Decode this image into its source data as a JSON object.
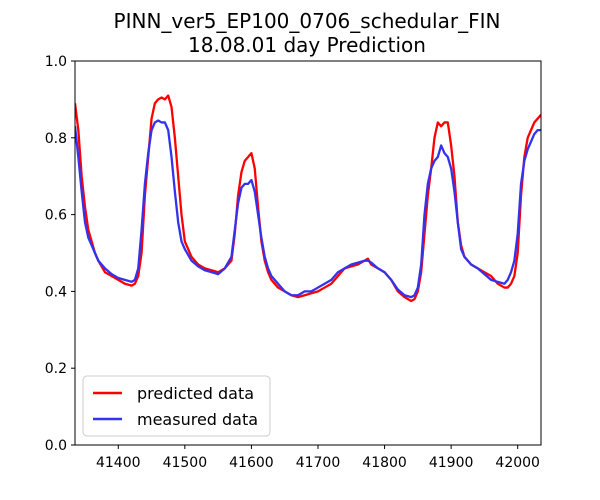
{
  "chart_data": {
    "type": "line",
    "title": [
      "PINN_ver5_EP100_0706_schedular_FIN",
      "18.08.01 day Prediction"
    ],
    "xlabel": "",
    "ylabel": "",
    "xlim": [
      41335,
      42035
    ],
    "ylim": [
      0,
      1.0
    ],
    "xticks": [
      41400,
      41500,
      41600,
      41700,
      41800,
      41900,
      42000
    ],
    "xtick_labels": [
      "41400",
      "41500",
      "41600",
      "41700",
      "41800",
      "41900",
      "42000"
    ],
    "yticks": [
      0.0,
      0.2,
      0.4,
      0.6,
      0.8,
      1.0
    ],
    "ytick_labels": [
      "0.0",
      "0.2",
      "0.4",
      "0.6",
      "0.8",
      "1.0"
    ],
    "grid": false,
    "legend_placement": "lower-left",
    "series": [
      {
        "name": "predicted data",
        "color": "#ff0000",
        "x": [
          41335,
          41340,
          41345,
          41350,
          41355,
          41360,
          41365,
          41370,
          41380,
          41390,
          41400,
          41410,
          41420,
          41425,
          41430,
          41435,
          41440,
          41445,
          41450,
          41455,
          41460,
          41465,
          41470,
          41475,
          41480,
          41485,
          41490,
          41495,
          41500,
          41510,
          41520,
          41530,
          41540,
          41550,
          41560,
          41570,
          41575,
          41580,
          41585,
          41590,
          41595,
          41600,
          41605,
          41610,
          41615,
          41620,
          41625,
          41630,
          41640,
          41650,
          41660,
          41670,
          41680,
          41690,
          41700,
          41710,
          41720,
          41730,
          41740,
          41750,
          41760,
          41770,
          41775,
          41780,
          41790,
          41800,
          41810,
          41820,
          41830,
          41840,
          41845,
          41850,
          41855,
          41860,
          41865,
          41870,
          41875,
          41880,
          41885,
          41890,
          41895,
          41900,
          41905,
          41910,
          41915,
          41920,
          41925,
          41930,
          41940,
          41950,
          41960,
          41970,
          41980,
          41985,
          41990,
          41995,
          42000,
          42005,
          42010,
          42015,
          42020,
          42025,
          42030,
          42035
        ],
        "y": [
          0.89,
          0.82,
          0.7,
          0.62,
          0.56,
          0.53,
          0.5,
          0.48,
          0.45,
          0.44,
          0.43,
          0.42,
          0.415,
          0.42,
          0.44,
          0.5,
          0.65,
          0.75,
          0.85,
          0.89,
          0.9,
          0.905,
          0.9,
          0.91,
          0.88,
          0.8,
          0.7,
          0.6,
          0.53,
          0.49,
          0.47,
          0.46,
          0.455,
          0.45,
          0.46,
          0.48,
          0.55,
          0.65,
          0.71,
          0.74,
          0.75,
          0.76,
          0.72,
          0.62,
          0.53,
          0.48,
          0.45,
          0.43,
          0.41,
          0.4,
          0.39,
          0.385,
          0.39,
          0.395,
          0.4,
          0.41,
          0.42,
          0.44,
          0.46,
          0.465,
          0.47,
          0.48,
          0.485,
          0.47,
          0.46,
          0.45,
          0.43,
          0.4,
          0.385,
          0.375,
          0.38,
          0.4,
          0.45,
          0.55,
          0.65,
          0.72,
          0.8,
          0.84,
          0.83,
          0.84,
          0.84,
          0.78,
          0.7,
          0.58,
          0.52,
          0.49,
          0.48,
          0.47,
          0.46,
          0.45,
          0.44,
          0.42,
          0.41,
          0.41,
          0.42,
          0.44,
          0.5,
          0.65,
          0.75,
          0.8,
          0.82,
          0.84,
          0.85,
          0.86
        ]
      },
      {
        "name": "measured data",
        "color": "#3333ee",
        "x": [
          41335,
          41340,
          41345,
          41350,
          41355,
          41360,
          41365,
          41370,
          41380,
          41390,
          41400,
          41410,
          41420,
          41425,
          41430,
          41435,
          41440,
          41445,
          41450,
          41455,
          41460,
          41465,
          41470,
          41475,
          41480,
          41485,
          41490,
          41495,
          41500,
          41510,
          41520,
          41530,
          41540,
          41550,
          41560,
          41570,
          41575,
          41580,
          41585,
          41590,
          41595,
          41600,
          41605,
          41610,
          41615,
          41620,
          41625,
          41630,
          41640,
          41650,
          41660,
          41670,
          41680,
          41690,
          41700,
          41710,
          41720,
          41730,
          41740,
          41750,
          41760,
          41770,
          41775,
          41780,
          41790,
          41800,
          41810,
          41820,
          41830,
          41840,
          41845,
          41850,
          41855,
          41860,
          41865,
          41870,
          41875,
          41880,
          41885,
          41890,
          41895,
          41900,
          41905,
          41910,
          41915,
          41920,
          41925,
          41930,
          41940,
          41950,
          41960,
          41970,
          41980,
          41985,
          41990,
          41995,
          42000,
          42005,
          42010,
          42015,
          42020,
          42025,
          42030,
          42035
        ],
        "y": [
          0.83,
          0.75,
          0.66,
          0.58,
          0.54,
          0.52,
          0.5,
          0.48,
          0.46,
          0.445,
          0.435,
          0.43,
          0.425,
          0.43,
          0.46,
          0.56,
          0.68,
          0.76,
          0.82,
          0.84,
          0.845,
          0.84,
          0.84,
          0.82,
          0.75,
          0.66,
          0.58,
          0.53,
          0.51,
          0.48,
          0.465,
          0.455,
          0.45,
          0.445,
          0.46,
          0.49,
          0.56,
          0.63,
          0.67,
          0.68,
          0.68,
          0.69,
          0.66,
          0.6,
          0.54,
          0.49,
          0.46,
          0.44,
          0.42,
          0.4,
          0.39,
          0.39,
          0.4,
          0.4,
          0.41,
          0.42,
          0.43,
          0.45,
          0.46,
          0.47,
          0.475,
          0.48,
          0.48,
          0.475,
          0.46,
          0.45,
          0.43,
          0.405,
          0.39,
          0.385,
          0.39,
          0.41,
          0.47,
          0.6,
          0.68,
          0.72,
          0.74,
          0.75,
          0.78,
          0.76,
          0.75,
          0.72,
          0.66,
          0.58,
          0.51,
          0.49,
          0.48,
          0.47,
          0.46,
          0.445,
          0.43,
          0.425,
          0.42,
          0.43,
          0.45,
          0.48,
          0.55,
          0.68,
          0.74,
          0.77,
          0.79,
          0.81,
          0.82,
          0.82
        ]
      }
    ]
  }
}
